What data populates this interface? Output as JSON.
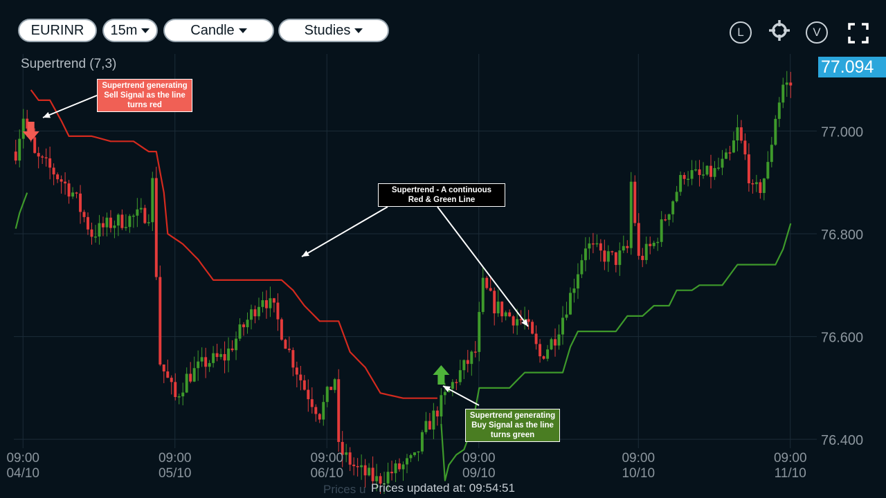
{
  "toolbar": {
    "symbol": "EURINR",
    "interval": "15m",
    "chart_style": "Candle",
    "studies": "Studies",
    "icons": [
      "l-circle-icon",
      "crosshair-icon",
      "v-circle-icon",
      "fullscreen-icon"
    ],
    "l_label": "L",
    "v_label": "V"
  },
  "study_title": "Supertrend (7,3)",
  "last_price": "77.094",
  "status": "Prices updated at: 09:54:51",
  "status_ghost": "Prices u",
  "annotations": {
    "sell": "Supertrend generating Sell Signal as the line turns red",
    "continuous": "Supertrend - A continuous Red & Green Line",
    "buy": "Supertrend generating Buy Signal as the line turns green"
  },
  "colors": {
    "background": "#06121b",
    "up": "#3e9a2b",
    "down": "#e43b3b",
    "supertrend_red": "#d42a1e",
    "supertrend_green": "#3e9a2b",
    "price_tag": "#2ba6dc",
    "sell_callout": "#f06055",
    "buy_callout": "#4a7d22",
    "continuous_callout": "#000000"
  },
  "chart_data": {
    "type": "candlestick",
    "title": "Supertrend (7,3)",
    "y_ticks": [
      "77.000",
      "76.800",
      "76.600",
      "76.400"
    ],
    "ylim": [
      76.31,
      77.15
    ],
    "x_ticks": [
      {
        "time": "09:00",
        "date": "04/10"
      },
      {
        "time": "09:00",
        "date": "05/10"
      },
      {
        "time": "09:00",
        "date": "06/10"
      },
      {
        "time": "09:00",
        "date": "09/10"
      },
      {
        "time": "09:00",
        "date": "10/10"
      },
      {
        "time": "09:00",
        "date": "11/10"
      }
    ],
    "grid": true,
    "close_path": [
      [
        0,
        76.96
      ],
      [
        2,
        77.03
      ],
      [
        5,
        76.95
      ],
      [
        10,
        76.92
      ],
      [
        15,
        76.88
      ],
      [
        20,
        76.8
      ],
      [
        25,
        76.82
      ],
      [
        30,
        76.83
      ],
      [
        35,
        76.84
      ],
      [
        36,
        76.9
      ],
      [
        38,
        76.55
      ],
      [
        42,
        76.48
      ],
      [
        45,
        76.52
      ],
      [
        50,
        76.55
      ],
      [
        55,
        76.56
      ],
      [
        60,
        76.62
      ],
      [
        65,
        76.68
      ],
      [
        68,
        76.65
      ],
      [
        72,
        76.57
      ],
      [
        76,
        76.5
      ],
      [
        80,
        76.45
      ],
      [
        84,
        76.52
      ],
      [
        85,
        76.38
      ],
      [
        90,
        76.34
      ],
      [
        95,
        76.32
      ],
      [
        100,
        76.34
      ],
      [
        105,
        76.36
      ],
      [
        108,
        76.42
      ],
      [
        112,
        76.47
      ],
      [
        116,
        76.52
      ],
      [
        121,
        76.57
      ],
      [
        123,
        76.7
      ],
      [
        126,
        76.66
      ],
      [
        130,
        76.64
      ],
      [
        134,
        76.63
      ],
      [
        138,
        76.56
      ],
      [
        142,
        76.6
      ],
      [
        146,
        76.68
      ],
      [
        150,
        76.78
      ],
      [
        154,
        76.76
      ],
      [
        158,
        76.75
      ],
      [
        161,
        76.77
      ],
      [
        162,
        76.9
      ],
      [
        164,
        76.75
      ],
      [
        168,
        76.78
      ],
      [
        172,
        76.85
      ],
      [
        176,
        76.92
      ],
      [
        180,
        76.91
      ],
      [
        184,
        76.92
      ],
      [
        188,
        76.95
      ],
      [
        190,
        77.0
      ],
      [
        192,
        76.95
      ],
      [
        194,
        76.88
      ],
      [
        196,
        76.89
      ],
      [
        198,
        76.93
      ],
      [
        200,
        77.03
      ],
      [
        202,
        77.09
      ]
    ],
    "supertrend": [
      [
        0,
        76.81
      ],
      [
        1,
        76.84
      ],
      [
        3,
        76.88
      ],
      [
        4,
        77.08
      ],
      [
        6,
        77.06
      ],
      [
        9,
        77.06
      ],
      [
        12,
        77.02
      ],
      [
        14,
        76.99
      ],
      [
        20,
        76.99
      ],
      [
        25,
        76.98
      ],
      [
        31,
        76.98
      ],
      [
        35,
        76.96
      ],
      [
        37,
        76.96
      ],
      [
        39,
        76.88
      ],
      [
        40,
        76.8
      ],
      [
        44,
        76.78
      ],
      [
        48,
        76.75
      ],
      [
        52,
        76.71
      ],
      [
        60,
        76.71
      ],
      [
        65,
        76.71
      ],
      [
        70,
        76.71
      ],
      [
        73,
        76.69
      ],
      [
        76,
        76.66
      ],
      [
        80,
        76.63
      ],
      [
        85,
        76.63
      ],
      [
        88,
        76.57
      ],
      [
        92,
        76.54
      ],
      [
        96,
        76.49
      ],
      [
        102,
        76.48
      ],
      [
        111,
        76.48
      ],
      [
        112,
        76.43
      ],
      [
        113,
        76.32
      ],
      [
        114,
        76.35
      ],
      [
        116,
        76.37
      ],
      [
        118,
        76.38
      ],
      [
        120,
        76.42
      ],
      [
        122,
        76.5
      ],
      [
        130,
        76.5
      ],
      [
        134,
        76.53
      ],
      [
        138,
        76.53
      ],
      [
        144,
        76.53
      ],
      [
        146,
        76.58
      ],
      [
        148,
        76.61
      ],
      [
        154,
        76.61
      ],
      [
        158,
        76.61
      ],
      [
        161,
        76.64
      ],
      [
        165,
        76.64
      ],
      [
        168,
        76.66
      ],
      [
        172,
        76.66
      ],
      [
        174,
        76.69
      ],
      [
        178,
        76.69
      ],
      [
        180,
        76.7
      ],
      [
        186,
        76.7
      ],
      [
        189,
        76.73
      ],
      [
        190,
        76.74
      ],
      [
        200,
        76.74
      ],
      [
        202,
        76.77
      ],
      [
        204,
        76.82
      ]
    ],
    "trend_segments": [
      {
        "from": 0,
        "to": 3,
        "trend": "up"
      },
      {
        "from": 4,
        "to": 111,
        "trend": "down"
      },
      {
        "from": 112,
        "to": 204,
        "trend": "up"
      }
    ],
    "signals": [
      {
        "type": "sell",
        "index": 4
      },
      {
        "type": "buy",
        "index": 112
      }
    ]
  }
}
